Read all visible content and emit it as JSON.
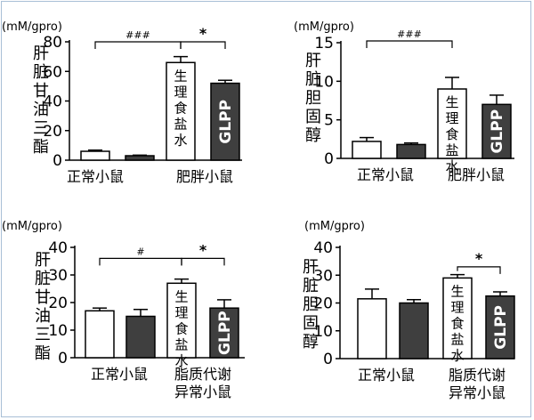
{
  "chart_data": [
    {
      "type": "bar",
      "unit_label": "(mM/gpro)",
      "ylabel": "肝脏甘油三酯",
      "ylim": [
        0,
        80
      ],
      "yticks": [
        0,
        20,
        40,
        60,
        80
      ],
      "groups": [
        "正常小鼠",
        "肥胖小鼠"
      ],
      "series": [
        {
          "name": "生理食盐水",
          "values": [
            6,
            66
          ],
          "errors": [
            0.8,
            4
          ]
        },
        {
          "name": "GLPP",
          "values": [
            3,
            52
          ],
          "errors": [
            0.4,
            2
          ]
        }
      ],
      "annotations": [
        {
          "text": "###",
          "from": "正常小鼠",
          "to": "肥胖小鼠"
        },
        {
          "text": "*",
          "from": "肥胖小鼠",
          "to": "肥胖小鼠"
        }
      ]
    },
    {
      "type": "bar",
      "unit_label": "(mM/gpro)",
      "ylabel": "肝脏胆固醇",
      "ylim": [
        0,
        15
      ],
      "yticks": [
        0,
        5,
        10,
        15
      ],
      "groups": [
        "正常小鼠",
        "肥胖小鼠"
      ],
      "series": [
        {
          "name": "生理食盐水",
          "values": [
            2.2,
            9.0
          ],
          "errors": [
            0.5,
            1.5
          ]
        },
        {
          "name": "GLPP",
          "values": [
            1.8,
            7.0
          ],
          "errors": [
            0.2,
            1.2
          ]
        }
      ],
      "annotations": [
        {
          "text": "###",
          "from": "正常小鼠",
          "to": "肥胖小鼠"
        }
      ]
    },
    {
      "type": "bar",
      "unit_label": "(mM/gpro)",
      "ylabel": "肝脏甘油三酯",
      "ylim": [
        0,
        40
      ],
      "yticks": [
        0,
        10,
        20,
        30,
        40
      ],
      "groups": [
        "正常小鼠",
        "脂质代谢异常小鼠"
      ],
      "series": [
        {
          "name": "生理食盐水",
          "values": [
            17,
            27
          ],
          "errors": [
            1,
            1.5
          ]
        },
        {
          "name": "GLPP",
          "values": [
            15,
            18
          ],
          "errors": [
            2.5,
            3
          ]
        }
      ],
      "annotations": [
        {
          "text": "#",
          "from": "正常小鼠",
          "to": "脂质代谢异常小鼠"
        },
        {
          "text": "*",
          "from": "脂质代谢异常小鼠",
          "to": "脂质代谢异常小鼠"
        }
      ]
    },
    {
      "type": "bar",
      "unit_label": "(mM/gpro)",
      "ylabel": "肝脏胆固醇",
      "ylim": [
        0,
        40
      ],
      "yticks": [
        0,
        10,
        20,
        30,
        40
      ],
      "groups": [
        "正常小鼠",
        "脂质代谢异常小鼠"
      ],
      "series": [
        {
          "name": "生理食盐水",
          "values": [
            21.5,
            29
          ],
          "errors": [
            3.5,
            1.2
          ]
        },
        {
          "name": "GLPP",
          "values": [
            20,
            22.5
          ],
          "errors": [
            1.2,
            1.5
          ]
        }
      ],
      "annotations": [
        {
          "text": "*",
          "from": "脂质代谢异常小鼠",
          "to": "脂质代谢异常小鼠"
        }
      ]
    }
  ],
  "colors": {
    "saline_fill": "#ffffff",
    "glpp_fill": "#3f3f3f",
    "axis": "#000000",
    "frame": "#a9bfd6",
    "glpp_text": "#ffffff"
  }
}
